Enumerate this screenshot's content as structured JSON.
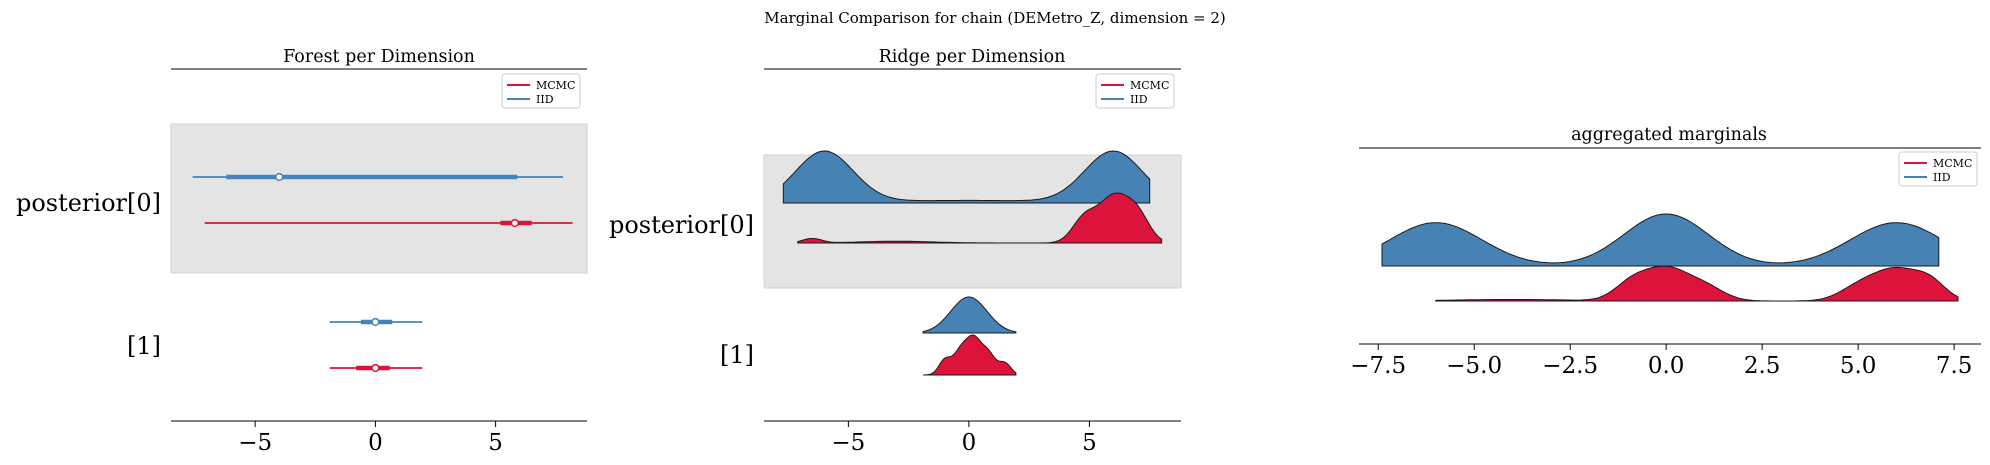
{
  "figure": {
    "title": "Marginal Comparison for chain (DEMetro_Z, dimension = 2)"
  },
  "colors": {
    "mcmc": "#dc143c",
    "iid": "#4682b4",
    "shade": "#e4e4e4",
    "axis": "#000000"
  },
  "legend": {
    "entries": [
      "MCMC",
      "IID"
    ],
    "placement": "top-right"
  },
  "chart_data": [
    {
      "type": "forest",
      "title": "Forest per Dimension",
      "xlim": [
        -8.5,
        8.8
      ],
      "xticks": [
        -5,
        0,
        5
      ],
      "row_labels": [
        "posterior[0]",
        "[1]"
      ],
      "shaded_rows": [
        0
      ],
      "series": [
        {
          "name": "IID",
          "rows": [
            {
              "row": 0,
              "min": -7.6,
              "q1": -6.2,
              "median": -4.0,
              "q3": 5.9,
              "max": 7.8
            },
            {
              "row": 1,
              "min": -1.9,
              "q1": -0.6,
              "median": 0.0,
              "q3": 0.7,
              "max": 1.95
            }
          ]
        },
        {
          "name": "MCMC",
          "rows": [
            {
              "row": 0,
              "min": -7.1,
              "q1": 5.2,
              "median": 5.8,
              "q3": 6.5,
              "max": 8.2
            },
            {
              "row": 1,
              "min": -1.9,
              "q1": -0.8,
              "median": 0.0,
              "q3": 0.6,
              "max": 1.95
            }
          ]
        }
      ]
    },
    {
      "type": "ridge",
      "title": "Ridge per Dimension",
      "xlim": [
        -8.5,
        8.8
      ],
      "xticks": [
        -5,
        0,
        5
      ],
      "row_labels": [
        "posterior[0]",
        "[1]"
      ],
      "shaded_rows": [
        0
      ],
      "series": [
        {
          "name": "IID",
          "rows": [
            {
              "row": 0,
              "x_range": [
                -7.7,
                7.5
              ],
              "peaks": [
                [
                  -6.0,
                  1.2,
                  1.0
                ],
                [
                  0.0,
                  4.0,
                  0.05
                ],
                [
                  6.0,
                  1.2,
                  1.0
                ]
              ]
            },
            {
              "row": 1,
              "x_range": [
                -1.9,
                1.95
              ],
              "peaks": [
                [
                  0.0,
                  0.75,
                  1.0
                ]
              ]
            }
          ]
        },
        {
          "name": "MCMC",
          "rows": [
            {
              "row": 0,
              "x_range": [
                -7.1,
                8.0
              ],
              "peaks": [
                [
                  -6.5,
                  0.4,
                  0.1
                ],
                [
                  -3.0,
                  1.5,
                  0.04
                ],
                [
                  4.8,
                  0.5,
                  0.55
                ],
                [
                  6.0,
                  0.6,
                  1.0
                ],
                [
                  7.0,
                  0.5,
                  0.6
                ]
              ]
            },
            {
              "row": 1,
              "x_range": [
                -1.9,
                1.95
              ],
              "peaks": [
                [
                  -1.0,
                  0.25,
                  0.45
                ],
                [
                  -0.35,
                  0.3,
                  0.7
                ],
                [
                  0.2,
                  0.3,
                  1.0
                ],
                [
                  0.8,
                  0.3,
                  0.65
                ],
                [
                  1.5,
                  0.25,
                  0.35
                ]
              ]
            }
          ]
        }
      ]
    },
    {
      "type": "ridge",
      "title": "aggregated marginals",
      "xlim": [
        -8.0,
        8.2
      ],
      "xticks": [
        -7.5,
        -5.0,
        -2.5,
        0.0,
        2.5,
        5.0,
        7.5
      ],
      "series": [
        {
          "name": "IID",
          "x_range": [
            -7.4,
            7.1
          ],
          "peaks": [
            [
              -6.0,
              1.2,
              1.0
            ],
            [
              0.0,
              1.1,
              1.2
            ],
            [
              6.0,
              1.2,
              1.0
            ]
          ]
        },
        {
          "name": "MCMC",
          "x_range": [
            -6.0,
            7.6
          ],
          "peaks": [
            [
              -4.0,
              1.5,
              0.05
            ],
            [
              -0.9,
              0.45,
              0.55
            ],
            [
              0.0,
              0.55,
              1.0
            ],
            [
              1.0,
              0.5,
              0.45
            ],
            [
              5.0,
              0.5,
              0.4
            ],
            [
              6.0,
              0.6,
              1.0
            ],
            [
              6.9,
              0.4,
              0.5
            ]
          ]
        }
      ]
    }
  ]
}
